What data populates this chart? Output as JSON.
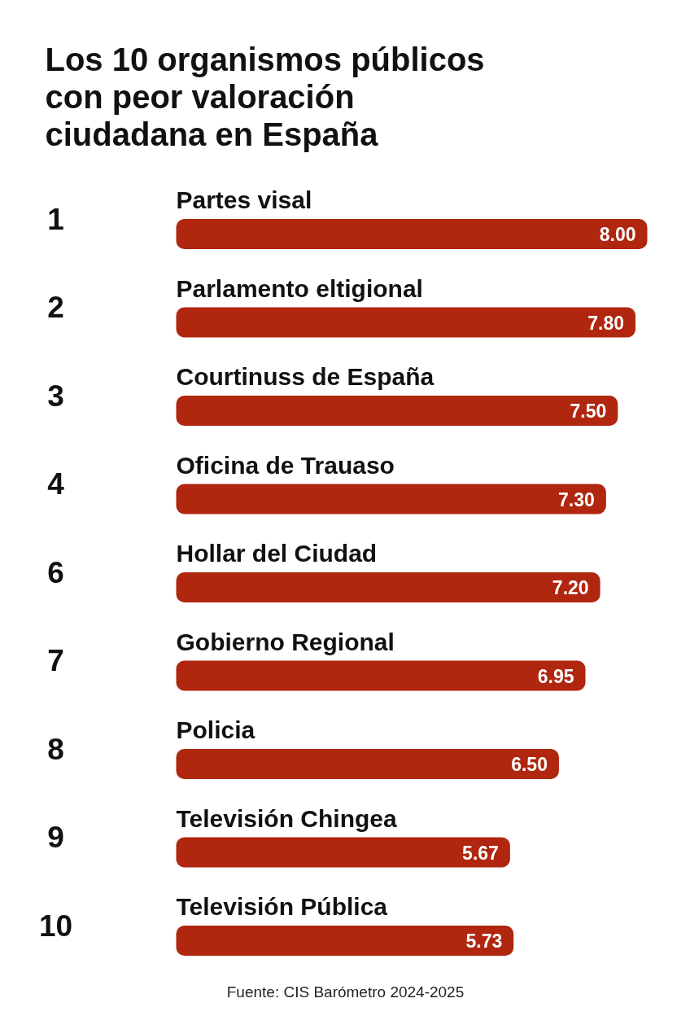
{
  "chart_data": {
    "type": "bar",
    "orientation": "horizontal",
    "title": "Los 10 organismos públicos con peor valoración ciudadana en España",
    "categories": [
      "Partes visal",
      "Parlamento eltigional",
      "Courtinuss de España",
      "Oficina de Trauaso",
      "Hollar del Ciudad",
      "Gobierno Regional",
      "Policia",
      "Televisión Chingea",
      "Televisión Pública"
    ],
    "values": [
      8.0,
      7.8,
      7.5,
      7.3,
      7.2,
      6.95,
      6.5,
      5.67,
      5.73
    ],
    "value_labels": [
      "8.00",
      "7.80",
      "7.50",
      "7.30",
      "7.20",
      "6.95",
      "6.50",
      "5.67",
      "5.73"
    ],
    "color": "#b0260f",
    "annotations": [
      "1",
      "2",
      "3",
      "4",
      "6",
      "7",
      "8",
      "9",
      "10",
      "Fuente: CIS Barómetro 2024-2025"
    ]
  }
}
